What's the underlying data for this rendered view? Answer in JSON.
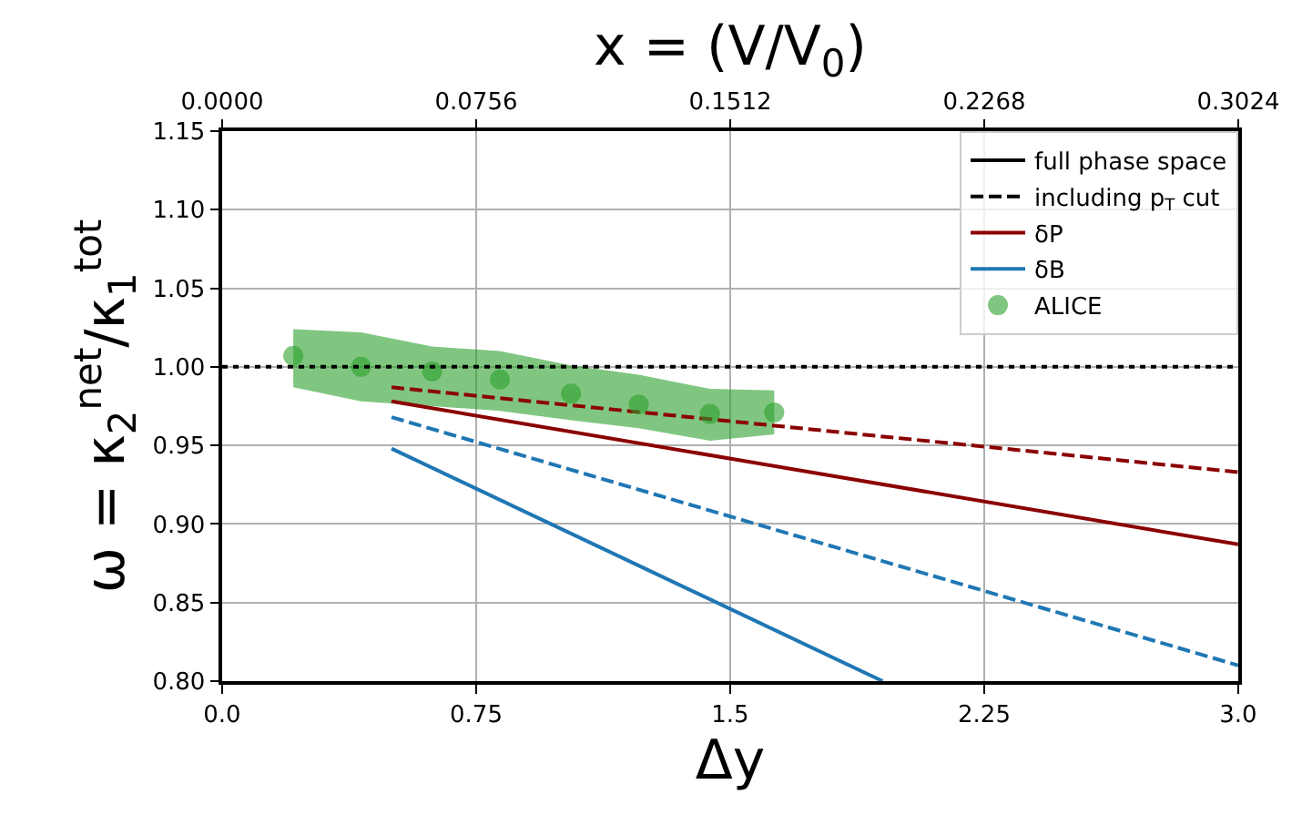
{
  "chart_data": {
    "type": "line",
    "xlabel": "Δy",
    "ylabel": "ω = κ$_{2}$$^{net}$/κ$_{1}$$^{tot}$",
    "x2label": "x = (V/V$_{0}$)",
    "xlim": [
      0,
      3.0
    ],
    "xticks": [
      {
        "value": 0,
        "label": "0.0"
      },
      0.75,
      1.5,
      2.25,
      {
        "value": 3.0,
        "label": "3.0"
      }
    ],
    "x2lim": [
      0,
      0.3024
    ],
    "x2ticks": [
      {
        "value": 0,
        "label": "0.0000"
      },
      0.0756,
      0.1512,
      0.2268,
      0.3024
    ],
    "ylim": [
      0.8,
      1.15
    ],
    "yticks": [
      {
        "value": 0.8,
        "label": "0.80"
      },
      0.85,
      {
        "value": 0.9,
        "label": "0.90"
      },
      0.95,
      {
        "value": 1.0,
        "label": "1.00"
      },
      1.05,
      {
        "value": 1.1,
        "label": "1.10"
      },
      1.15
    ],
    "grid": true,
    "legend": "top right",
    "ref_lines": [
      {
        "axis": "y",
        "value": 1.0,
        "color": "#000000",
        "line_style": "dotted"
      }
    ],
    "series": [
      {
        "name": "full phase space",
        "color": "#000000",
        "line_style": "solid"
      },
      {
        "name": "including p$_{T}$ cut",
        "color": "#000000",
        "line_style": "dashed"
      },
      {
        "name": "δP",
        "color": "#8b0000",
        "line_style": "solid",
        "x": [
          0.5,
          3.0
        ],
        "values": [
          0.978,
          0.887
        ]
      },
      {
        "color": "#8b0000",
        "line_style": "dashed",
        "x": [
          0.5,
          3.0
        ],
        "values": [
          0.987,
          0.933
        ]
      },
      {
        "name": "δB",
        "color": "#1f77b4",
        "line_style": "solid",
        "x": [
          0.5,
          1.95
        ],
        "values": [
          0.948,
          0.8
        ]
      },
      {
        "color": "#1f77b4",
        "line_style": "dashed",
        "x": [
          0.5,
          3.0
        ],
        "values": [
          0.968,
          0.81
        ]
      },
      {
        "name": "ALICE",
        "type": "scatter",
        "marker": "circle",
        "color": "#2ca02c",
        "x": [
          0.21,
          0.41,
          0.62,
          0.82,
          1.03,
          1.23,
          1.44,
          1.63
        ],
        "values": [
          1.007,
          1.0,
          0.997,
          0.992,
          0.983,
          0.976,
          0.97,
          0.971
        ],
        "lower": [
          0.987,
          0.978,
          0.975,
          0.972,
          0.966,
          0.961,
          0.953,
          0.957
        ],
        "upper": [
          1.024,
          1.022,
          1.013,
          1.01,
          1.001,
          0.995,
          0.986,
          0.985
        ]
      }
    ]
  }
}
